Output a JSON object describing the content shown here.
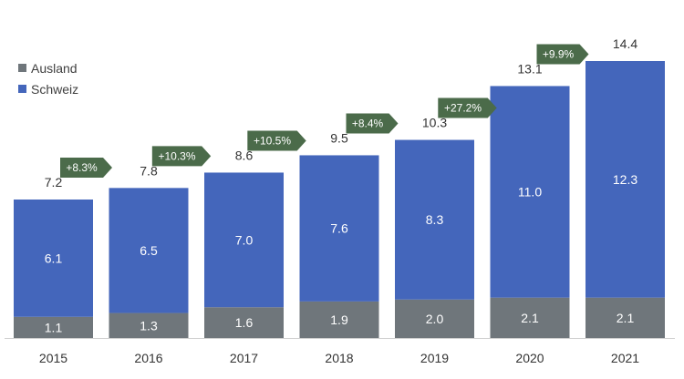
{
  "chart_data": {
    "type": "bar",
    "stacked": true,
    "categories": [
      "2015",
      "2016",
      "2017",
      "2018",
      "2019",
      "2020",
      "2021"
    ],
    "series": [
      {
        "name": "Ausland",
        "values": [
          1.1,
          1.3,
          1.6,
          1.9,
          2.0,
          2.1,
          2.1
        ],
        "value_labels": [
          "1.1",
          "1.3",
          "1.6",
          "1.9",
          "2.0",
          "2.1",
          "2.1"
        ],
        "color": "#6f767b"
      },
      {
        "name": "Schweiz",
        "values": [
          6.1,
          6.5,
          7.0,
          7.6,
          8.3,
          11.0,
          12.3
        ],
        "value_labels": [
          "6.1",
          "6.5",
          "7.0",
          "7.6",
          "8.3",
          "11.0",
          "12.3"
        ],
        "color": "#4466bb"
      }
    ],
    "totals": [
      7.2,
      7.8,
      8.6,
      9.5,
      10.3,
      13.1,
      14.4
    ],
    "total_labels": [
      "7.2",
      "7.8",
      "8.6",
      "9.5",
      "10.3",
      "13.1",
      "14.4"
    ],
    "growth": [
      null,
      "+8.3%",
      "+10.3%",
      "+10.5%",
      "+8.4%",
      "+27.2%",
      "+9.9%"
    ],
    "growth_color": "#4b6b4a",
    "legend_position": "top-left",
    "ylim": [
      0,
      16
    ],
    "grid": false
  }
}
